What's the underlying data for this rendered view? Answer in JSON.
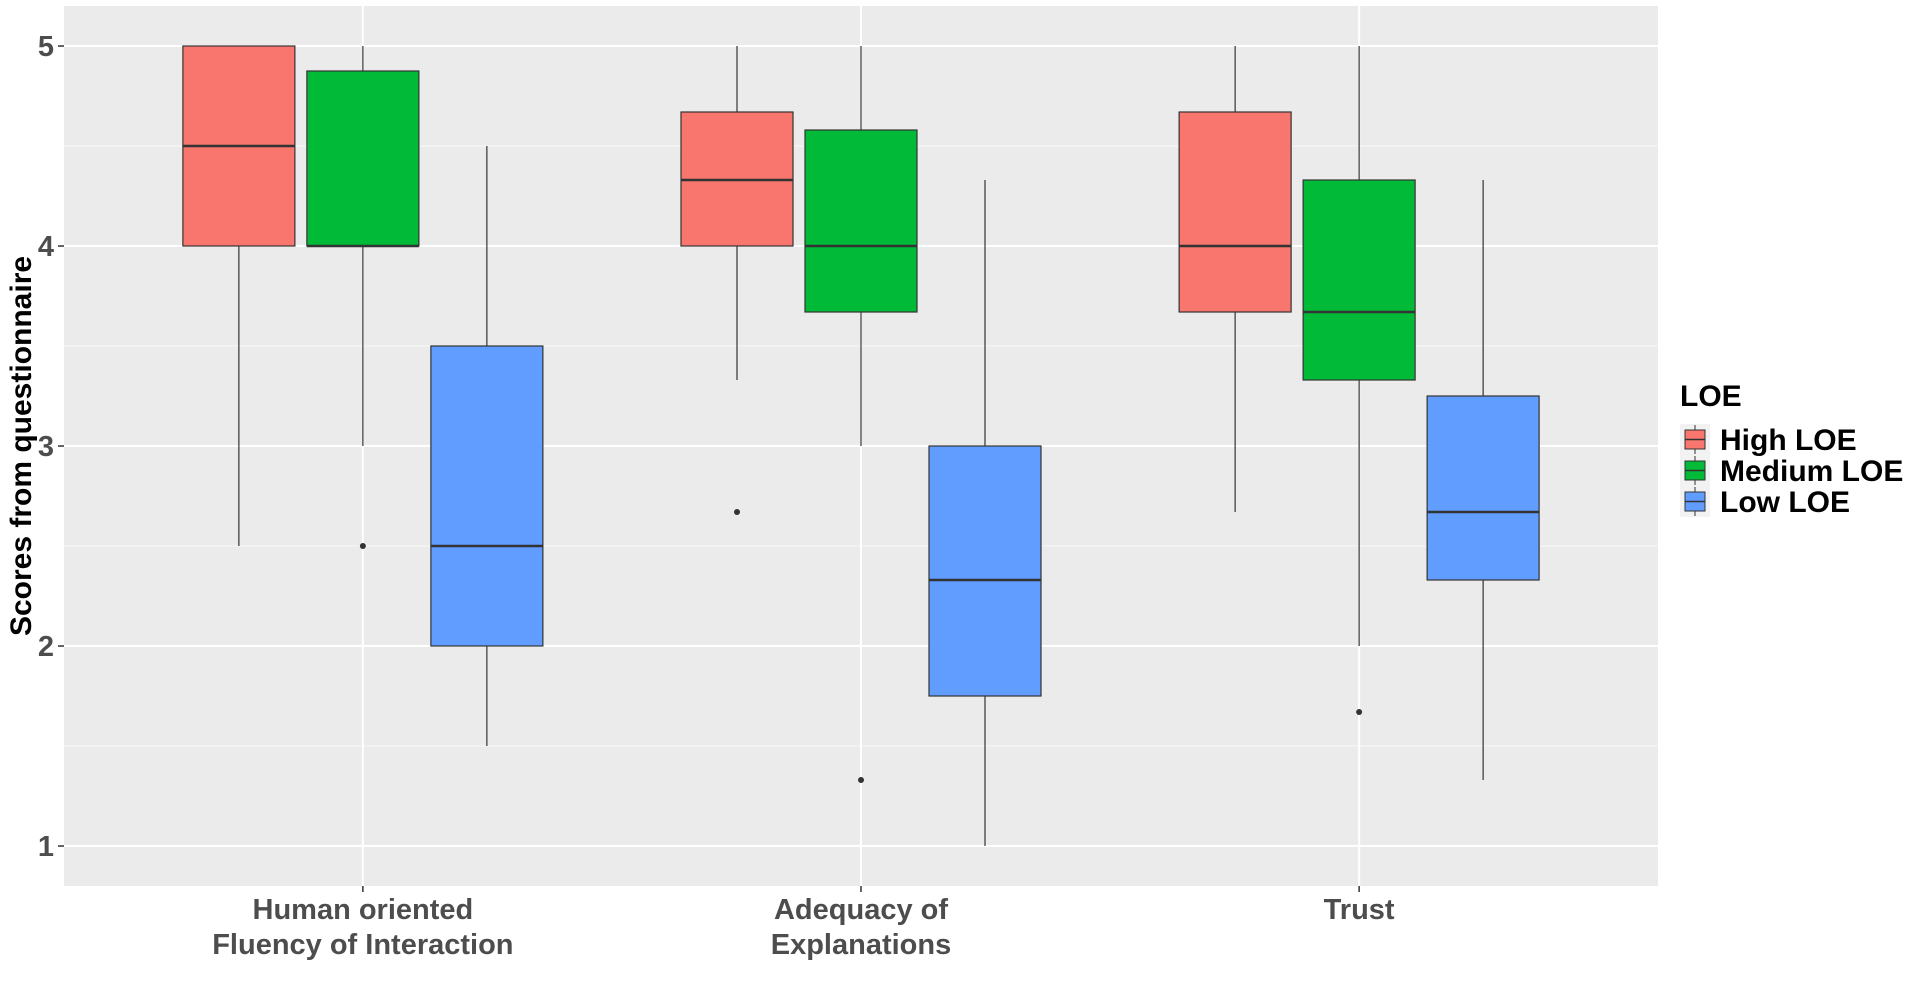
{
  "chart_data": {
    "type": "boxplot",
    "title": "",
    "xlabel": "",
    "ylabel": "Scores from questionnaire",
    "ylim": [
      0.8,
      5.2
    ],
    "yticks": [
      1,
      2,
      3,
      4,
      5
    ],
    "ytick_labels": [
      "1",
      "2",
      "3",
      "4",
      "5"
    ],
    "categories": [
      {
        "lines": [
          "Human oriented",
          "Fluency of Interaction"
        ]
      },
      {
        "lines": [
          "Adequacy of",
          "Explanations"
        ]
      },
      {
        "lines": [
          "Trust"
        ]
      }
    ],
    "legend": {
      "title": "LOE",
      "position": "right",
      "items": [
        {
          "label": "High LOE",
          "color": "#F8766D"
        },
        {
          "label": "Medium LOE",
          "color": "#00BA38"
        },
        {
          "label": "Low LOE",
          "color": "#619CFF"
        }
      ]
    },
    "series": [
      {
        "name": "High LOE",
        "color": "#F8766D",
        "boxes": [
          {
            "lower_whisker": 2.5,
            "q1": 4.0,
            "median": 4.5,
            "q3": 5.0,
            "upper_whisker": 5.0,
            "outliers": []
          },
          {
            "lower_whisker": 3.33,
            "q1": 4.0,
            "median": 4.33,
            "q3": 4.67,
            "upper_whisker": 5.0,
            "outliers": [
              2.67
            ]
          },
          {
            "lower_whisker": 2.67,
            "q1": 3.67,
            "median": 4.0,
            "q3": 4.67,
            "upper_whisker": 5.0,
            "outliers": []
          }
        ]
      },
      {
        "name": "Medium LOE",
        "color": "#00BA38",
        "boxes": [
          {
            "lower_whisker": 3.0,
            "q1": 4.0,
            "median": 4.0,
            "q3": 4.875,
            "upper_whisker": 5.0,
            "outliers": [
              2.5
            ]
          },
          {
            "lower_whisker": 3.0,
            "q1": 3.67,
            "median": 4.0,
            "q3": 4.58,
            "upper_whisker": 5.0,
            "outliers": [
              1.33
            ]
          },
          {
            "lower_whisker": 2.0,
            "q1": 3.33,
            "median": 3.67,
            "q3": 4.33,
            "upper_whisker": 5.0,
            "outliers": [
              1.67
            ]
          }
        ]
      },
      {
        "name": "Low LOE",
        "color": "#619CFF",
        "boxes": [
          {
            "lower_whisker": 1.5,
            "q1": 2.0,
            "median": 2.5,
            "q3": 3.5,
            "upper_whisker": 4.5,
            "outliers": []
          },
          {
            "lower_whisker": 1.0,
            "q1": 1.75,
            "median": 2.33,
            "q3": 3.0,
            "upper_whisker": 4.33,
            "outliers": []
          },
          {
            "lower_whisker": 1.33,
            "q1": 2.33,
            "median": 2.67,
            "q3": 3.25,
            "upper_whisker": 4.33,
            "outliers": []
          }
        ]
      }
    ],
    "colors": {
      "panel_background": "#EBEBEB",
      "major_grid": "#FFFFFF",
      "minor_grid": "#F5F5F5",
      "box_border": "#333333",
      "whisker": "#333333",
      "outlier": "#333333"
    }
  }
}
